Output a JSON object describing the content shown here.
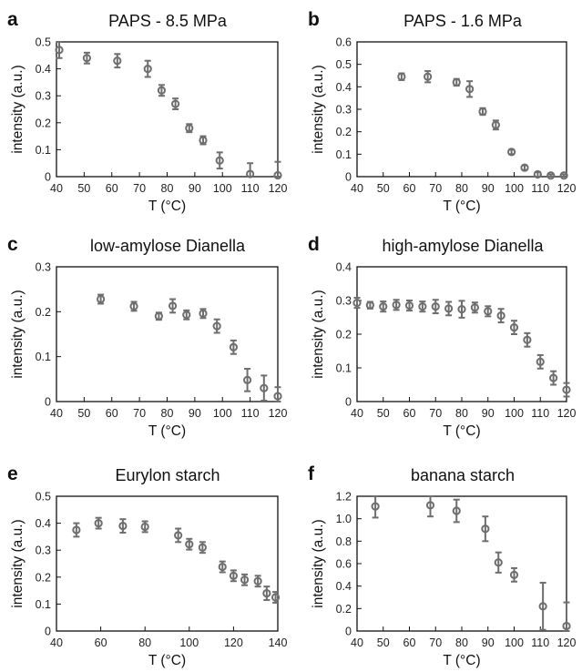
{
  "chart_data": [
    {
      "type": "scatter",
      "letter": "a",
      "title": "PAPS - 8.5 MPa",
      "xlabel": "T (°C)",
      "ylabel": "intensity (a.u.)",
      "xlim": [
        40,
        120
      ],
      "ylim": [
        0,
        0.5
      ],
      "xticks": [
        40,
        50,
        60,
        70,
        80,
        90,
        100,
        110,
        120
      ],
      "xtick_labels": [
        "40",
        "50",
        "60",
        "70",
        "80",
        "90",
        "100",
        "110",
        "120"
      ],
      "yticks": [
        0,
        0.1,
        0.2,
        0.3,
        0.4,
        0.5
      ],
      "ytick_labels": [
        "0",
        "0.1",
        "0.2",
        "0.3",
        "0.4",
        "0.5"
      ],
      "x": [
        41,
        51,
        62,
        73,
        78,
        83,
        88,
        93,
        99,
        110,
        120
      ],
      "y": [
        0.47,
        0.44,
        0.43,
        0.4,
        0.32,
        0.27,
        0.18,
        0.135,
        0.06,
        0.01,
        0.005
      ],
      "err": [
        0.03,
        0.02,
        0.025,
        0.03,
        0.02,
        0.02,
        0.015,
        0.015,
        0.03,
        0.04,
        0.05
      ],
      "grid": false
    },
    {
      "type": "scatter",
      "letter": "b",
      "title": "PAPS - 1.6 MPa",
      "xlabel": "T (°C)",
      "ylabel": "intensity (a.u.)",
      "xlim": [
        40,
        120
      ],
      "ylim": [
        0,
        0.6
      ],
      "xticks": [
        40,
        50,
        60,
        70,
        80,
        90,
        100,
        110,
        120
      ],
      "xtick_labels": [
        "40",
        "50",
        "60",
        "70",
        "80",
        "90",
        "100",
        "110",
        "120"
      ],
      "yticks": [
        0,
        0.1,
        0.2,
        0.3,
        0.4,
        0.5,
        0.6
      ],
      "ytick_labels": [
        "0",
        "0.1",
        "0.2",
        "0.3",
        "0.4",
        "0.5",
        "0.6"
      ],
      "x": [
        57,
        67,
        78,
        83,
        88,
        93,
        99,
        104,
        109,
        114,
        119
      ],
      "y": [
        0.445,
        0.445,
        0.42,
        0.39,
        0.29,
        0.23,
        0.11,
        0.04,
        0.01,
        0.005,
        0.005
      ],
      "err": [
        0.015,
        0.025,
        0.015,
        0.035,
        0.015,
        0.02,
        0.01,
        0.01,
        0.01,
        0.005,
        0.005
      ],
      "grid": false
    },
    {
      "type": "scatter",
      "letter": "c",
      "title": "low-amylose Dianella",
      "xlabel": "T (°C)",
      "ylabel": "intensity (a.u.)",
      "xlim": [
        40,
        120
      ],
      "ylim": [
        0,
        0.3
      ],
      "xticks": [
        40,
        50,
        60,
        70,
        80,
        90,
        100,
        110,
        120
      ],
      "xtick_labels": [
        "40",
        "50",
        "60",
        "70",
        "80",
        "90",
        "100",
        "110",
        "120"
      ],
      "yticks": [
        0,
        0.1,
        0.2,
        0.3
      ],
      "ytick_labels": [
        "0",
        "0.1",
        "0.2",
        "0.3"
      ],
      "x": [
        56,
        68,
        77,
        82,
        87,
        93,
        98,
        104,
        109,
        115,
        120
      ],
      "y": [
        0.228,
        0.212,
        0.19,
        0.213,
        0.193,
        0.196,
        0.168,
        0.121,
        0.048,
        0.03,
        0.012
      ],
      "err": [
        0.01,
        0.01,
        0.008,
        0.015,
        0.01,
        0.01,
        0.015,
        0.015,
        0.025,
        0.028,
        0.02
      ],
      "grid": false
    },
    {
      "type": "scatter",
      "letter": "d",
      "title": "high-amylose Dianella",
      "xlabel": "T (°C)",
      "ylabel": "intensity (a.u.)",
      "xlim": [
        40,
        120
      ],
      "ylim": [
        0,
        0.4
      ],
      "xticks": [
        40,
        50,
        60,
        70,
        80,
        90,
        100,
        110,
        120
      ],
      "xtick_labels": [
        "40",
        "50",
        "60",
        "70",
        "80",
        "90",
        "100",
        "110",
        "120"
      ],
      "yticks": [
        0,
        0.1,
        0.2,
        0.3,
        0.4
      ],
      "ytick_labels": [
        "0",
        "0.1",
        "0.2",
        "0.3",
        "0.4"
      ],
      "x": [
        40,
        45,
        50,
        55,
        60,
        65,
        70,
        75,
        80,
        85,
        90,
        95,
        100,
        105,
        110,
        115,
        120
      ],
      "y": [
        0.293,
        0.286,
        0.282,
        0.287,
        0.285,
        0.282,
        0.282,
        0.276,
        0.274,
        0.279,
        0.268,
        0.255,
        0.22,
        0.183,
        0.118,
        0.07,
        0.035
      ],
      "err": [
        0.015,
        0.01,
        0.015,
        0.015,
        0.015,
        0.015,
        0.02,
        0.02,
        0.025,
        0.015,
        0.015,
        0.02,
        0.02,
        0.02,
        0.02,
        0.02,
        0.02
      ],
      "grid": false
    },
    {
      "type": "scatter",
      "letter": "e",
      "title": "Eurylon starch",
      "xlabel": "T (°C)",
      "ylabel": "intensity (a.u.)",
      "xlim": [
        40,
        140
      ],
      "ylim": [
        0,
        0.5
      ],
      "xticks": [
        40,
        60,
        80,
        100,
        120,
        140
      ],
      "xtick_labels": [
        "40",
        "60",
        "80",
        "100",
        "120",
        "140"
      ],
      "yticks": [
        0,
        0.1,
        0.2,
        0.3,
        0.4,
        0.5
      ],
      "ytick_labels": [
        "0",
        "0.1",
        "0.2",
        "0.3",
        "0.4",
        "0.5"
      ],
      "x": [
        49,
        59,
        70,
        80,
        95,
        100,
        106,
        115,
        120,
        125,
        131,
        135,
        139
      ],
      "y": [
        0.375,
        0.4,
        0.39,
        0.387,
        0.355,
        0.322,
        0.31,
        0.238,
        0.205,
        0.19,
        0.185,
        0.14,
        0.125
      ],
      "err": [
        0.025,
        0.02,
        0.025,
        0.02,
        0.025,
        0.02,
        0.02,
        0.02,
        0.02,
        0.02,
        0.02,
        0.025,
        0.02
      ],
      "grid": false
    },
    {
      "type": "scatter",
      "letter": "f",
      "title": "banana starch",
      "xlabel": "T (°C)",
      "ylabel": "intensity (a.u.)",
      "xlim": [
        40,
        120
      ],
      "ylim": [
        0,
        1.2
      ],
      "xticks": [
        40,
        50,
        60,
        70,
        80,
        90,
        100,
        110,
        120
      ],
      "xtick_labels": [
        "40",
        "50",
        "60",
        "70",
        "80",
        "90",
        "100",
        "110",
        "120"
      ],
      "yticks": [
        0,
        0.2,
        0.4,
        0.6,
        0.8,
        1.0,
        1.2
      ],
      "ytick_labels": [
        "0",
        "0.2",
        "0.4",
        "0.6",
        "0.8",
        "1.0",
        "1.2"
      ],
      "x": [
        47,
        68,
        78,
        89,
        94,
        100,
        111,
        120
      ],
      "y": [
        1.11,
        1.12,
        1.07,
        0.91,
        0.61,
        0.5,
        0.22,
        0.045
      ],
      "err": [
        0.1,
        0.1,
        0.1,
        0.11,
        0.09,
        0.06,
        0.21,
        0.21
      ],
      "grid": false
    }
  ]
}
